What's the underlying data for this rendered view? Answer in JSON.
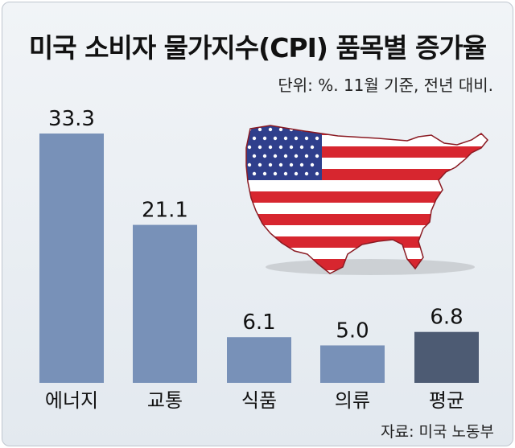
{
  "title": "미국 소비자 물가지수(CPI) 품목별 증가율",
  "unit_note": "단위: %. 11월 기준, 전년 대비.",
  "source": "자료: 미국 노동부",
  "colors": {
    "bar": "#7891b8",
    "highlight_bar": "#4d5b73",
    "flag_red": "#d7262f",
    "flag_blue": "#2f3f8c",
    "flag_white": "#ffffff"
  },
  "chart_data": {
    "type": "bar",
    "title": "미국 소비자 물가지수(CPI) 품목별 증가율",
    "xlabel": "",
    "ylabel": "",
    "categories": [
      "에너지",
      "교통",
      "식품",
      "의류",
      "평균"
    ],
    "values": [
      33.3,
      21.1,
      6.1,
      5.0,
      6.8
    ],
    "value_labels": [
      "33.3",
      "21.1",
      "6.1",
      "5.0",
      "6.8"
    ],
    "highlight": "평균",
    "ylim": [
      0,
      33.3
    ],
    "grid": false,
    "legend": "none"
  },
  "illustration": {
    "icon": "us-flag-map-icon"
  }
}
